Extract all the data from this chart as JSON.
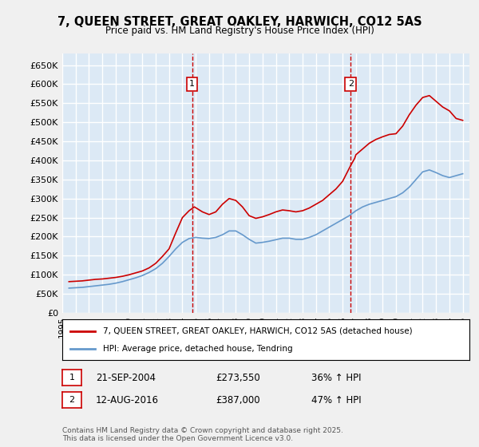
{
  "title": "7, QUEEN STREET, GREAT OAKLEY, HARWICH, CO12 5AS",
  "subtitle": "Price paid vs. HM Land Registry's House Price Index (HPI)",
  "ylabel_ticks": [
    "£0",
    "£50K",
    "£100K",
    "£150K",
    "£200K",
    "£250K",
    "£300K",
    "£350K",
    "£400K",
    "£450K",
    "£500K",
    "£550K",
    "£600K",
    "£650K"
  ],
  "ylim": [
    0,
    680000
  ],
  "xlim_start": 1995.0,
  "xlim_end": 2025.5,
  "background_color": "#dce9f5",
  "plot_bg": "#dce9f5",
  "red_line_color": "#cc0000",
  "blue_line_color": "#6699cc",
  "grid_color": "#ffffff",
  "annotation1": {
    "x": 2004.72,
    "label": "1",
    "date": "21-SEP-2004",
    "price": "£273,550",
    "pct": "36% ↑ HPI"
  },
  "annotation2": {
    "x": 2016.61,
    "label": "2",
    "date": "12-AUG-2016",
    "price": "£387,000",
    "pct": "47% ↑ HPI"
  },
  "legend_line1": "7, QUEEN STREET, GREAT OAKLEY, HARWICH, CO12 5AS (detached house)",
  "legend_line2": "HPI: Average price, detached house, Tendring",
  "footer": "Contains HM Land Registry data © Crown copyright and database right 2025.\nThis data is licensed under the Open Government Licence v3.0.",
  "red_data": {
    "years": [
      1995.5,
      1996.0,
      1996.5,
      1997.0,
      1997.5,
      1998.0,
      1998.5,
      1999.0,
      1999.5,
      2000.0,
      2000.5,
      2001.0,
      2001.5,
      2002.0,
      2002.5,
      2003.0,
      2003.5,
      2004.0,
      2004.5,
      2004.72,
      2004.9,
      2005.5,
      2006.0,
      2006.5,
      2007.0,
      2007.5,
      2008.0,
      2008.5,
      2009.0,
      2009.5,
      2010.0,
      2010.5,
      2011.0,
      2011.5,
      2012.0,
      2012.5,
      2013.0,
      2013.5,
      2014.0,
      2014.5,
      2015.0,
      2015.5,
      2016.0,
      2016.61,
      2016.9,
      2017.0,
      2017.5,
      2018.0,
      2018.5,
      2019.0,
      2019.5,
      2020.0,
      2020.5,
      2021.0,
      2021.5,
      2022.0,
      2022.5,
      2023.0,
      2023.5,
      2024.0,
      2024.5,
      2025.0
    ],
    "values": [
      82000,
      83000,
      84000,
      86000,
      88000,
      89000,
      91000,
      93000,
      96000,
      100000,
      105000,
      110000,
      118000,
      130000,
      148000,
      168000,
      210000,
      250000,
      268000,
      273550,
      278000,
      265000,
      258000,
      265000,
      285000,
      300000,
      295000,
      278000,
      255000,
      248000,
      252000,
      258000,
      265000,
      270000,
      268000,
      265000,
      268000,
      275000,
      285000,
      295000,
      310000,
      325000,
      345000,
      387000,
      405000,
      415000,
      430000,
      445000,
      455000,
      462000,
      468000,
      470000,
      490000,
      520000,
      545000,
      565000,
      570000,
      555000,
      540000,
      530000,
      510000,
      505000
    ]
  },
  "blue_data": {
    "years": [
      1995.5,
      1996.0,
      1996.5,
      1997.0,
      1997.5,
      1998.0,
      1998.5,
      1999.0,
      1999.5,
      2000.0,
      2000.5,
      2001.0,
      2001.5,
      2002.0,
      2002.5,
      2003.0,
      2003.5,
      2004.0,
      2004.5,
      2005.0,
      2005.5,
      2006.0,
      2006.5,
      2007.0,
      2007.5,
      2008.0,
      2008.5,
      2009.0,
      2009.5,
      2010.0,
      2010.5,
      2011.0,
      2011.5,
      2012.0,
      2012.5,
      2013.0,
      2013.5,
      2014.0,
      2014.5,
      2015.0,
      2015.5,
      2016.0,
      2016.5,
      2017.0,
      2017.5,
      2018.0,
      2018.5,
      2019.0,
      2019.5,
      2020.0,
      2020.5,
      2021.0,
      2021.5,
      2022.0,
      2022.5,
      2023.0,
      2023.5,
      2024.0,
      2024.5,
      2025.0
    ],
    "values": [
      65000,
      66000,
      67000,
      69000,
      71000,
      73000,
      75000,
      78000,
      82000,
      87000,
      92000,
      98000,
      106000,
      116000,
      130000,
      148000,
      168000,
      185000,
      195000,
      198000,
      196000,
      195000,
      198000,
      205000,
      215000,
      215000,
      205000,
      193000,
      183000,
      185000,
      188000,
      192000,
      196000,
      196000,
      193000,
      193000,
      198000,
      205000,
      215000,
      225000,
      235000,
      245000,
      255000,
      268000,
      278000,
      285000,
      290000,
      295000,
      300000,
      305000,
      315000,
      330000,
      350000,
      370000,
      375000,
      368000,
      360000,
      355000,
      360000,
      365000
    ]
  }
}
